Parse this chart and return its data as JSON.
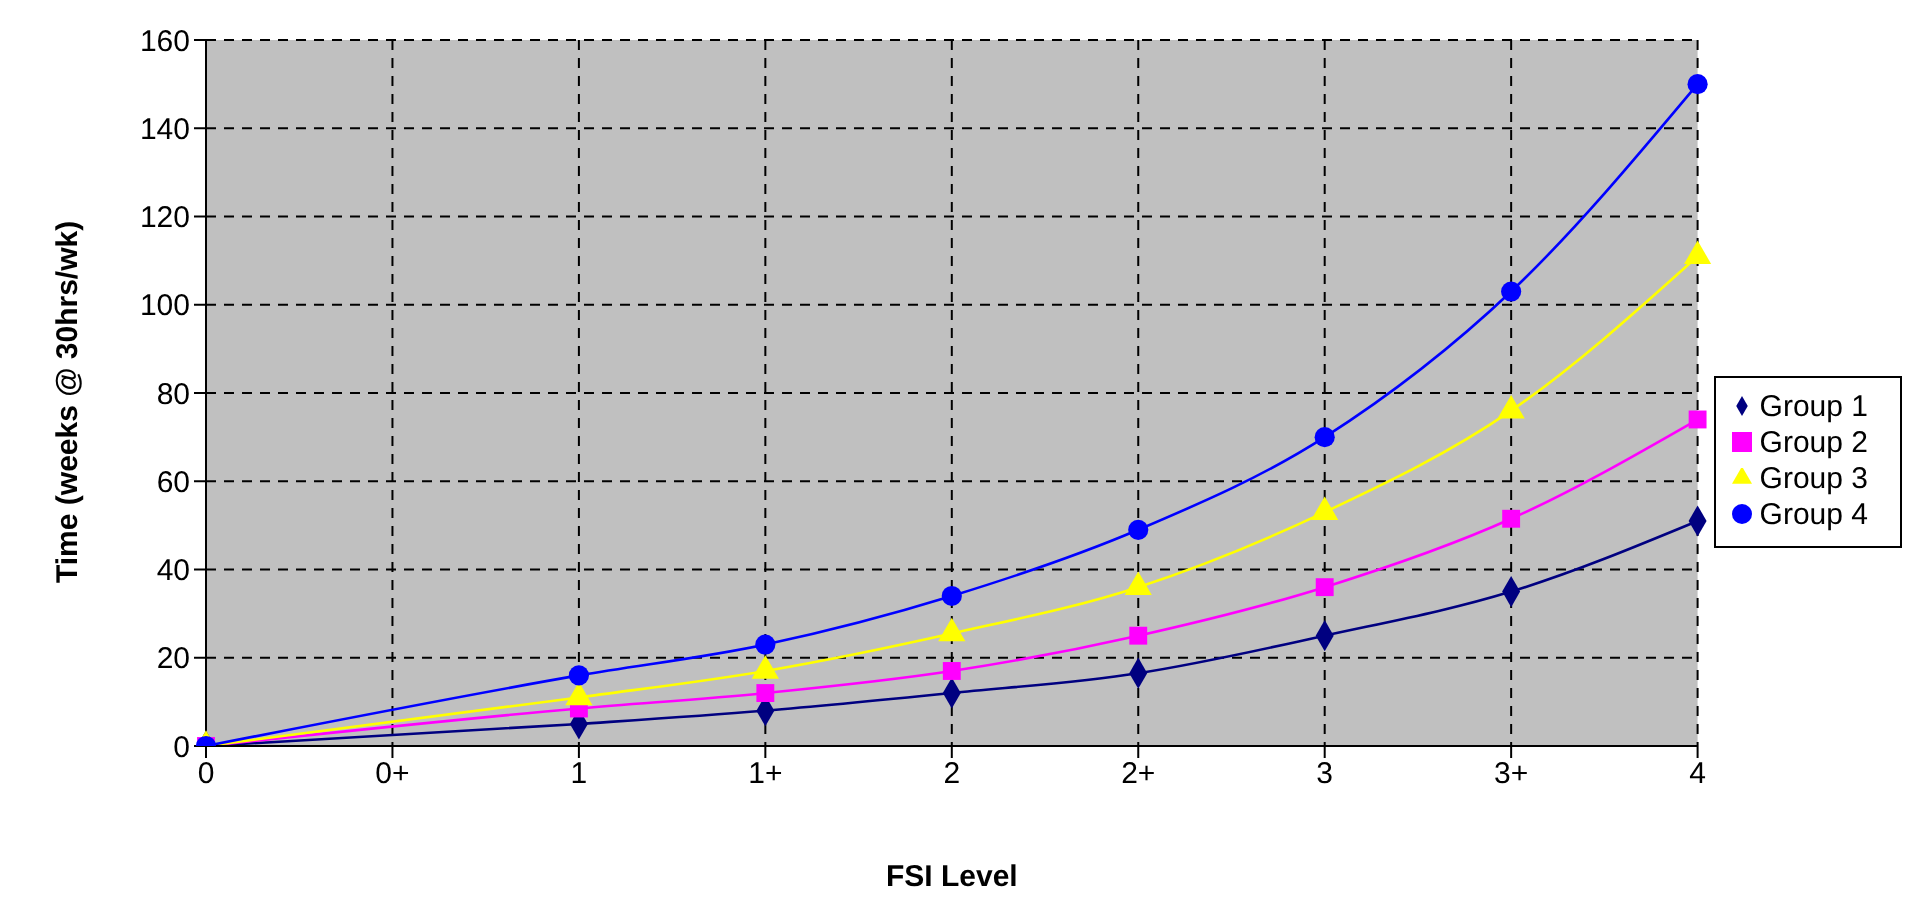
{
  "chart_data": {
    "type": "line",
    "xlabel": "FSI Level",
    "ylabel": "Time (weeks @ 30hrs/wk)",
    "categories": [
      "0",
      "0+",
      "1",
      "1+",
      "2",
      "2+",
      "3",
      "3+",
      "4"
    ],
    "series": [
      {
        "name": "Group 1",
        "color": "#000080",
        "marker": "diamond",
        "values": [
          0,
          null,
          5,
          8,
          12,
          16.5,
          25,
          35,
          51
        ]
      },
      {
        "name": "Group 2",
        "color": "#ff00ff",
        "marker": "square",
        "values": [
          0,
          null,
          8.5,
          12,
          17,
          25,
          36,
          51.5,
          74
        ]
      },
      {
        "name": "Group 3",
        "color": "#ffff00",
        "marker": "triangle",
        "values": [
          0,
          null,
          11,
          17,
          25.5,
          36,
          53,
          76,
          111
        ]
      },
      {
        "name": "Group 4",
        "color": "#0000ff",
        "marker": "circle",
        "values": [
          0,
          null,
          16,
          23,
          34,
          49,
          70,
          103,
          150
        ]
      }
    ],
    "ylim": [
      0,
      160
    ],
    "yticks": [
      0,
      20,
      40,
      60,
      80,
      100,
      120,
      140,
      160
    ],
    "grid": true,
    "legend": "right",
    "line_style": "solid"
  }
}
